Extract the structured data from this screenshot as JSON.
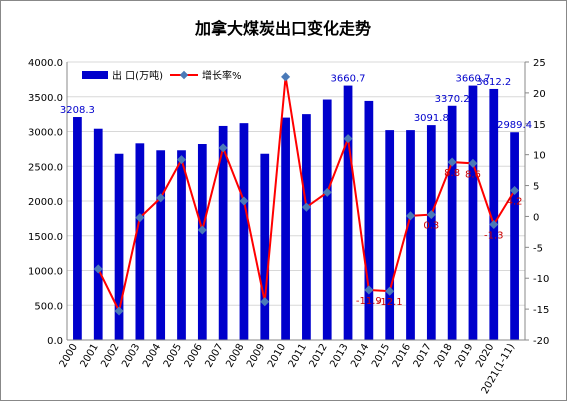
{
  "chart_data": {
    "type": "bar",
    "title": "加拿大煤炭出口变化走势",
    "categories": [
      "2000",
      "2001",
      "2002",
      "2003",
      "2004",
      "2005",
      "2006",
      "2007",
      "2008",
      "2009",
      "2010",
      "2011",
      "2012",
      "2013",
      "2014",
      "2015",
      "2016",
      "2017",
      "2018",
      "2019",
      "2020",
      "2021(1-11)"
    ],
    "series": [
      {
        "name": "出 口(万吨)",
        "axis": "left",
        "kind": "bar",
        "color": "#0000cc",
        "values": [
          3208.3,
          3040,
          2680,
          2830,
          2730,
          2730,
          2820,
          3080,
          3120,
          2680,
          3200,
          3250,
          3460,
          3660.7,
          3440,
          3020,
          3020,
          3091.8,
          3370.2,
          3660.7,
          3612.2,
          2989.4
        ]
      },
      {
        "name": "增长率%",
        "axis": "right",
        "kind": "line",
        "color": "#ff0000",
        "marker_color": "#4a7ab8",
        "values": [
          null,
          -8.5,
          -15.3,
          -0.2,
          3.0,
          9.2,
          -2.2,
          11.1,
          2.5,
          -13.8,
          22.6,
          1.5,
          3.9,
          12.6,
          -11.9,
          -12.1,
          0.1,
          0.3,
          8.8,
          8.6,
          -1.3,
          4.2
        ]
      }
    ],
    "bar_labels": {
      "0": "3208.3",
      "13": "3660.7",
      "17": "3091.8",
      "18": "3370.2",
      "19": "3660.7",
      "20": "3612.2",
      "21": "2989.4"
    },
    "line_labels": {
      "14": "-11.9",
      "15": "-12.1",
      "17": "0.3",
      "18": "8.8",
      "19": "8.6",
      "20": "-1.3",
      "21": "4.2"
    },
    "y_left": {
      "min": 0,
      "max": 4000,
      "step": 500,
      "tick_labels": [
        "0.0",
        "500.0",
        "1000.0",
        "1500.0",
        "2000.0",
        "2500.0",
        "3000.0",
        "3500.0",
        "4000.0"
      ]
    },
    "y_right": {
      "min": -20,
      "max": 25,
      "step": 5,
      "tick_labels": [
        "-20",
        "-15",
        "-10",
        "-5",
        "0",
        "5",
        "10",
        "15",
        "20",
        "25"
      ]
    },
    "grid": true,
    "legend": {
      "position": "top-left"
    }
  }
}
